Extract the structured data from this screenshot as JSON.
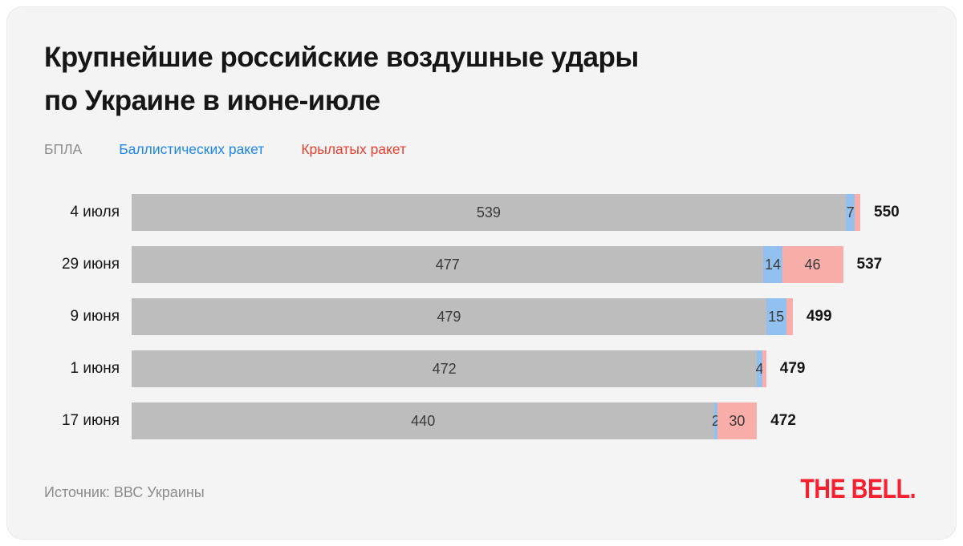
{
  "title": {
    "line1": "Крупнейшие российские воздушные удары",
    "line2": "по Украине в июне-июле"
  },
  "legend": [
    {
      "label": "БПЛА",
      "text_color": "#8C8C8C"
    },
    {
      "label": "Баллистических ракет",
      "text_color": "#2086E8"
    },
    {
      "label": "Крылатых ракет",
      "text_color": "#E8402F"
    }
  ],
  "chart_data": {
    "type": "bar",
    "orientation": "horizontal",
    "stacked": true,
    "title": "Крупнейшие российские воздушные удары по Украине в июне-июле",
    "categories": [
      "4 июля",
      "29 июня",
      "9 июня",
      "1 июня",
      "17 июня"
    ],
    "series": [
      {
        "name": "БПЛА",
        "color": "#BDBDBD",
        "values": [
          539,
          477,
          479,
          472,
          440
        ],
        "labels": [
          "539",
          "477",
          "479",
          "472",
          "440"
        ]
      },
      {
        "name": "Баллистических ракет",
        "color": "#92C1F0",
        "values": [
          7,
          14,
          15,
          4,
          2
        ],
        "labels": [
          "7",
          "14",
          "15",
          "4",
          "2"
        ]
      },
      {
        "name": "Крылатых ракет",
        "color": "#F9AEAA",
        "values": [
          4,
          46,
          5,
          3,
          30
        ],
        "labels": [
          "",
          "46",
          "",
          "",
          "30"
        ]
      }
    ],
    "totals": [
      550,
      537,
      499,
      479,
      472
    ],
    "xmax": 550,
    "legend_position": "top",
    "grid": false
  },
  "source": "Источник: ВВС Украины",
  "logo": {
    "text": "THE BELL.",
    "color": "#F7202E"
  }
}
